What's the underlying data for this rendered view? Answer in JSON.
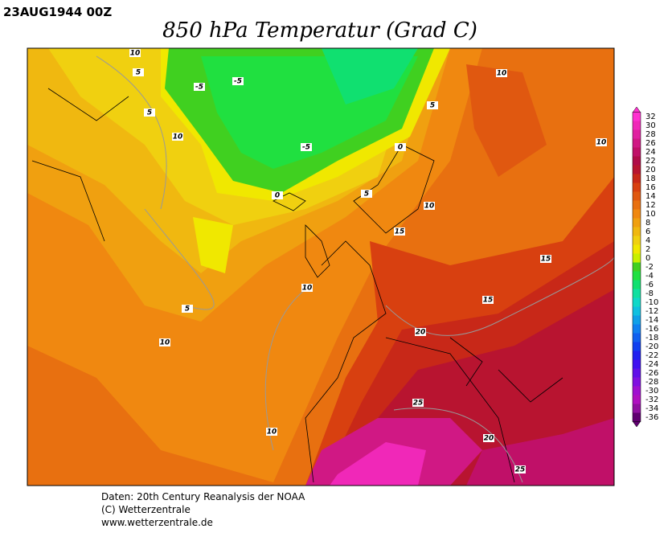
{
  "header": {
    "date": "23AUG1944 00Z",
    "title": "850 hPa Temperatur (Grad C)"
  },
  "legend": {
    "levels": [
      32,
      30,
      28,
      26,
      24,
      22,
      20,
      18,
      16,
      14,
      12,
      10,
      8,
      6,
      4,
      2,
      0,
      -2,
      -4,
      -6,
      -8,
      -10,
      -12,
      -14,
      -16,
      -18,
      -20,
      -22,
      -24,
      -26,
      -28,
      -30,
      -32,
      -34,
      -36
    ],
    "colors": [
      "#ff30d0",
      "#f028b8",
      "#e020a0",
      "#d01884",
      "#c01068",
      "#b00c48",
      "#b81430",
      "#c82818",
      "#d84010",
      "#e05810",
      "#e87010",
      "#f08810",
      "#f0a010",
      "#f0b810",
      "#f0d010",
      "#f0e800",
      "#c8f000",
      "#40d020",
      "#20e040",
      "#10e070",
      "#10e0a0",
      "#10d8c8",
      "#10c0e0",
      "#10a0e8",
      "#1080f0",
      "#1060f0",
      "#1040f0",
      "#2020f0",
      "#4010f0",
      "#6010e8",
      "#8010e0",
      "#a010d0",
      "#b010c0",
      "#9010a0",
      "#600070"
    ]
  },
  "contour_labels": [
    "10",
    "5",
    "5",
    "10",
    "-5",
    "-5",
    "-5",
    "0",
    "5",
    "0",
    "5",
    "10",
    "10",
    "10",
    "15",
    "15",
    "15",
    "10",
    "5",
    "10",
    "20",
    "25",
    "10",
    "20",
    "25"
  ],
  "footer": {
    "line1": "Daten: 20th Century Reanalysis der NOAA",
    "line2": "(C) Wetterzentrale",
    "line3": "www.wetterzentrale.de"
  }
}
